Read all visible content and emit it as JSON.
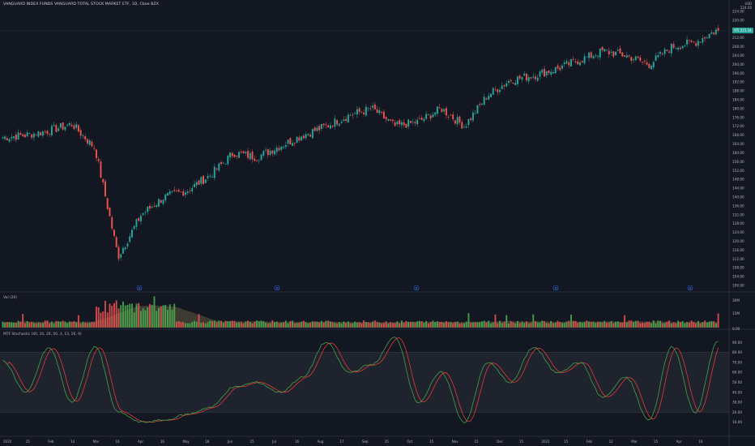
{
  "header": {
    "symbol_title": "VANGUARD INDEX FUNDS VANGUARD TOTAL STOCK MARKET ETF, 1D, Cboe BZX",
    "corner_top": "USD",
    "corner_bottom": "224.00"
  },
  "colors": {
    "background": "#131722",
    "up": "#26a69a",
    "up_bright": "#4caf50",
    "down": "#ef5350",
    "grid": "#1e222d",
    "band_fill": "#2a2e39",
    "ma_fill": "#8d7b4c",
    "k_line": "#43a047",
    "d_line": "#e53935",
    "price_tag": "#26a69a"
  },
  "price_pane": {
    "price_tag": "VTI  215.34",
    "y_ticks": [
      "224.00",
      "220.00",
      "216.00",
      "212.00",
      "208.00",
      "204.00",
      "200.00",
      "196.00",
      "192.00",
      "188.00",
      "184.00",
      "180.00",
      "176.00",
      "172.00",
      "168.00",
      "164.00",
      "160.00",
      "156.00",
      "152.00",
      "148.00",
      "144.00",
      "140.00",
      "136.00",
      "132.00",
      "128.00",
      "124.00",
      "120.00",
      "116.00",
      "112.00",
      "108.00",
      "104.00",
      "100.00"
    ],
    "event_markers": [
      "D",
      "D",
      "D",
      "D",
      "D"
    ]
  },
  "volume_pane": {
    "label": "Vol (20)",
    "y_ticks": [
      "30M",
      "15M",
      "0.00"
    ]
  },
  "stoch_pane": {
    "label": "MTF Stochastic (40, 10, 20, 50, 3, 13, 26, 9)",
    "y_ticks": [
      "90.00",
      "80.00",
      "70.00",
      "60.00",
      "50.00",
      "40.00",
      "30.00",
      "20.00",
      "10.00"
    ],
    "upper_band": 80,
    "lower_band": 20
  },
  "x_axis": {
    "ticks": [
      "2020",
      "15",
      "Feb",
      "14",
      "Mar",
      "16",
      "Apr",
      "16",
      "May",
      "18",
      "Jun",
      "15",
      "Jul",
      "16",
      "Aug",
      "17",
      "Sep",
      "15",
      "Oct",
      "15",
      "Nov",
      "15",
      "Dec",
      "15",
      "2021",
      "15",
      "Feb",
      "12",
      "Mar",
      "15",
      "Apr",
      "16"
    ]
  },
  "chart_data": {
    "type": "candlestick",
    "title": "VANGUARD INDEX FUNDS VANGUARD TOTAL STOCK MARKET ETF, 1D, Cboe BZX",
    "x_range": [
      "2020-01",
      "2021-04"
    ],
    "ylim": [
      100,
      224
    ],
    "close_anchors": [
      {
        "t": "2020",
        "v": 167
      },
      {
        "t": "15",
        "v": 168
      },
      {
        "t": "Feb",
        "v": 170
      },
      {
        "t": "14",
        "v": 173
      },
      {
        "t": "Mar",
        "v": 162
      },
      {
        "t": "16",
        "v": 113
      },
      {
        "t": "Apr",
        "v": 132
      },
      {
        "t": "16",
        "v": 140
      },
      {
        "t": "May",
        "v": 143
      },
      {
        "t": "18",
        "v": 150
      },
      {
        "t": "Jun",
        "v": 160
      },
      {
        "t": "15",
        "v": 158
      },
      {
        "t": "Jul",
        "v": 163
      },
      {
        "t": "16",
        "v": 168
      },
      {
        "t": "Aug",
        "v": 172
      },
      {
        "t": "17",
        "v": 177
      },
      {
        "t": "Sep",
        "v": 180
      },
      {
        "t": "15",
        "v": 172
      },
      {
        "t": "Oct",
        "v": 174
      },
      {
        "t": "15",
        "v": 180
      },
      {
        "t": "Nov",
        "v": 172
      },
      {
        "t": "15",
        "v": 186
      },
      {
        "t": "Dec",
        "v": 193
      },
      {
        "t": "15",
        "v": 195
      },
      {
        "t": "2021",
        "v": 198
      },
      {
        "t": "15",
        "v": 202
      },
      {
        "t": "Feb",
        "v": 206
      },
      {
        "t": "12",
        "v": 204
      },
      {
        "t": "Mar",
        "v": 200
      },
      {
        "t": "15",
        "v": 208
      },
      {
        "t": "Apr",
        "v": 210
      },
      {
        "t": "16",
        "v": 216
      }
    ],
    "volume_scale_max": 30,
    "stoch_k_anchors": [
      72,
      40,
      85,
      30,
      86,
      20,
      10,
      12,
      18,
      25,
      45,
      50,
      40,
      55,
      90,
      60,
      68,
      95,
      30,
      60,
      10,
      70,
      50,
      85,
      60,
      70,
      35,
      55,
      12,
      86,
      20,
      92
    ],
    "last_close": 215.34
  }
}
